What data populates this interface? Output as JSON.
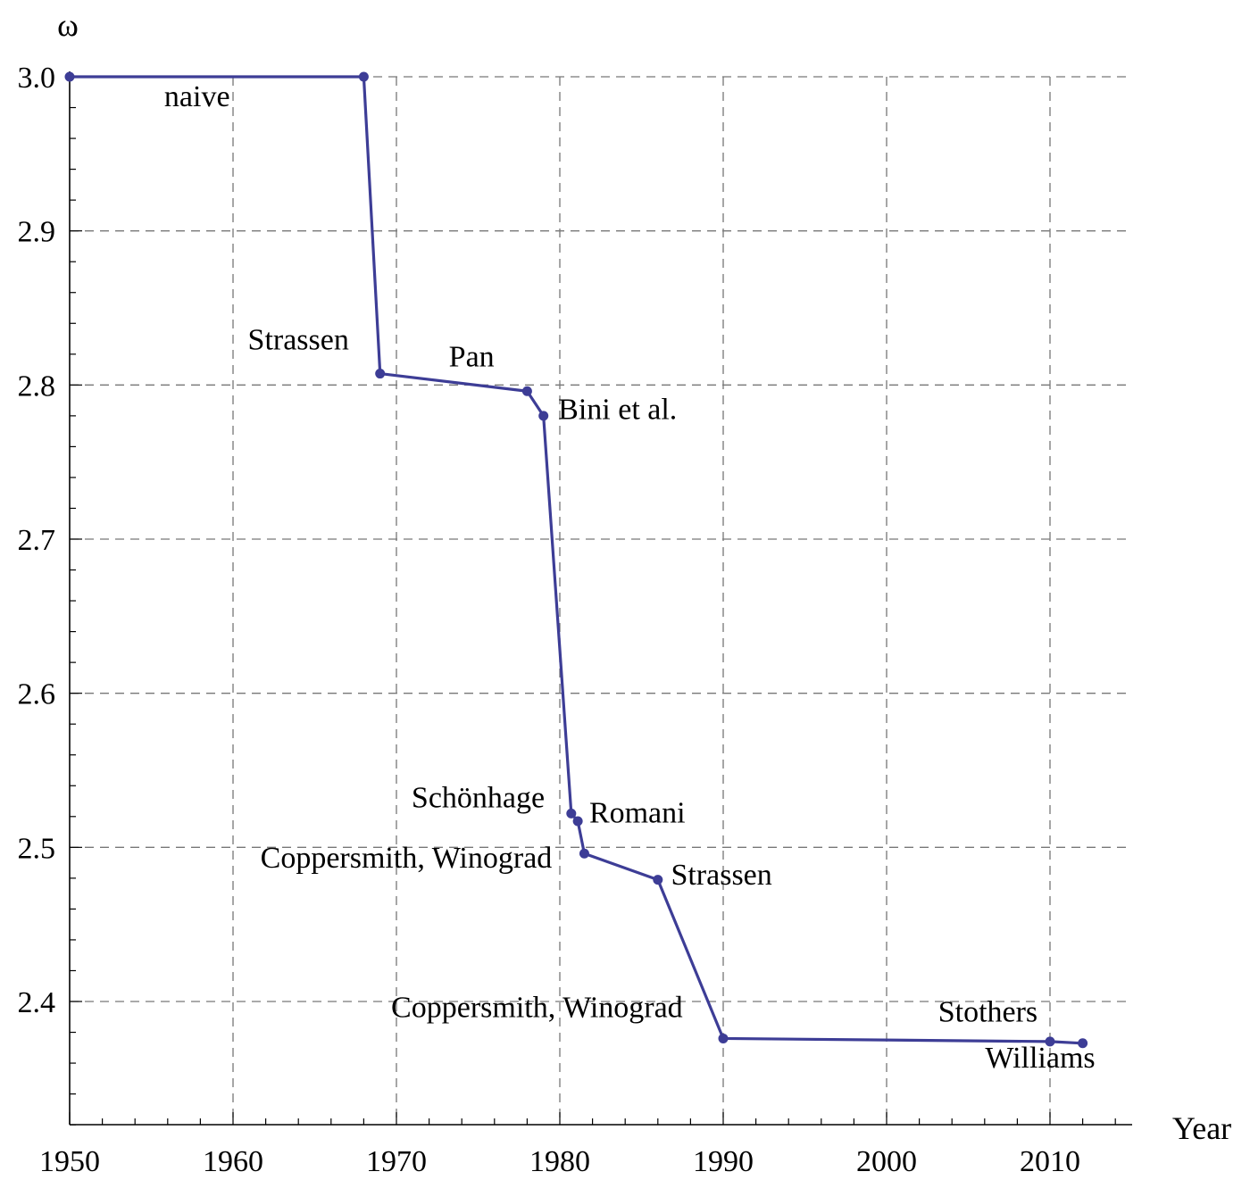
{
  "chart_data": {
    "type": "line",
    "title": "",
    "xlabel": "Year",
    "ylabel": "ω",
    "xlim": [
      1950,
      2015
    ],
    "ylim": [
      2.32,
      3.0
    ],
    "x_ticks": [
      1950,
      1960,
      1970,
      1980,
      1990,
      2000,
      2010
    ],
    "x_tick_labels": [
      "1950",
      "1960",
      "1970",
      "1980",
      "1990",
      "2000",
      "2010"
    ],
    "y_ticks": [
      2.4,
      2.5,
      2.6,
      2.7,
      2.8,
      2.9,
      3.0
    ],
    "y_tick_labels": [
      "2.4",
      "2.5",
      "2.6",
      "2.7",
      "2.8",
      "2.9",
      "3.0"
    ],
    "grid": true,
    "line_color": "#3d3d96",
    "series": [
      {
        "x": [
          1950,
          1968,
          1969,
          1978,
          1979,
          1980.7,
          1981.1,
          1981.5,
          1986,
          1990,
          2010,
          2012
        ],
        "y": [
          3.0,
          3.0,
          2.8074,
          2.796,
          2.78,
          2.522,
          2.517,
          2.496,
          2.479,
          2.376,
          2.374,
          2.3729
        ]
      }
    ],
    "annotations": [
      {
        "text": "naive",
        "x": 1957.8,
        "y": 2.981,
        "anchor": "middle"
      },
      {
        "text": "Strassen",
        "x": 1964,
        "y": 2.823,
        "anchor": "middle"
      },
      {
        "text": "Pan",
        "x": 1974.6,
        "y": 2.812,
        "anchor": "middle"
      },
      {
        "text": "Bini et al.",
        "x": 1979.9,
        "y": 2.778,
        "anchor": "start"
      },
      {
        "text": "Schönhage",
        "x": 1975,
        "y": 2.526,
        "anchor": "middle"
      },
      {
        "text": "Romani",
        "x": 1981.8,
        "y": 2.516,
        "anchor": "start"
      },
      {
        "text": "Coppersmith, Winograd",
        "x": 1970.6,
        "y": 2.487,
        "anchor": "middle"
      },
      {
        "text": "Strassen",
        "x": 1986.8,
        "y": 2.476,
        "anchor": "start"
      },
      {
        "text": "Coppersmith, Winograd",
        "x": 1978.6,
        "y": 2.39,
        "anchor": "middle"
      },
      {
        "text": "Stothers",
        "x": 2006.2,
        "y": 2.387,
        "anchor": "middle"
      },
      {
        "text": "Williams",
        "x": 2009.4,
        "y": 2.357,
        "anchor": "middle"
      }
    ]
  }
}
